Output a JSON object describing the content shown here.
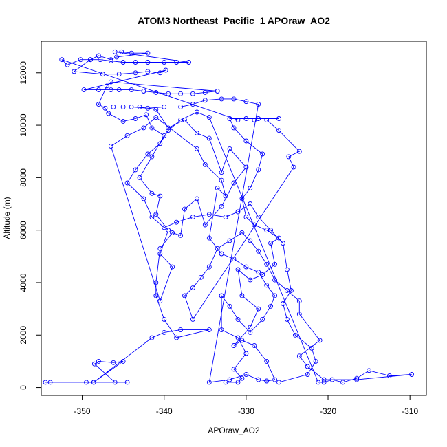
{
  "chart_data": {
    "type": "scatter",
    "title": "ATOM3 Northeast_Pacific_1 APOraw_AO2",
    "xlabel": "APOraw_AO2",
    "ylabel": "Altitude (m)",
    "xlim": [
      -355,
      -308
    ],
    "ylim": [
      -300,
      13200
    ],
    "x_ticks": [
      -350,
      -340,
      -330,
      -320,
      -310
    ],
    "y_ticks": [
      0,
      2000,
      4000,
      6000,
      8000,
      10000,
      12000
    ],
    "x_tick_labels": [
      "-350",
      "-340",
      "-330",
      "-320",
      "-310"
    ],
    "y_tick_labels": [
      "0",
      "2000",
      "4000",
      "6000",
      "8000",
      "10000",
      "12000"
    ],
    "grid": false,
    "legend": "none",
    "series": [
      {
        "color": "#0000ff",
        "style": "points-and-lines",
        "marker": "open-circle",
        "points": [
          [
            -354.5,
            200
          ],
          [
            -353.9,
            200
          ],
          [
            -349.5,
            200
          ],
          [
            -348.6,
            200
          ],
          [
            -344.5,
            200
          ],
          [
            -346.0,
            200
          ],
          [
            -348.5,
            900
          ],
          [
            -348.0,
            1000
          ],
          [
            -346.2,
            950
          ],
          [
            -345.0,
            1000
          ],
          [
            -348.6,
            200
          ],
          [
            -341.5,
            1900
          ],
          [
            -340.0,
            2100
          ],
          [
            -338.0,
            2200
          ],
          [
            -334.5,
            2200
          ],
          [
            -338.5,
            1900
          ],
          [
            -340.0,
            2600
          ],
          [
            -341.0,
            3500
          ],
          [
            -341.0,
            4000
          ],
          [
            -340.5,
            5300
          ],
          [
            -339.0,
            5900
          ],
          [
            -338.0,
            5800
          ],
          [
            -337.5,
            6800
          ],
          [
            -336.0,
            7200
          ],
          [
            -335.0,
            6200
          ],
          [
            -333.0,
            6900
          ],
          [
            -331.5,
            7800
          ],
          [
            -330.0,
            8400
          ],
          [
            -332.0,
            9100
          ],
          [
            -333.0,
            8200
          ],
          [
            -334.5,
            9500
          ],
          [
            -336.0,
            9700
          ],
          [
            -337.5,
            10200
          ],
          [
            -339.5,
            9900
          ],
          [
            -341.0,
            10600
          ],
          [
            -343.0,
            10700
          ],
          [
            -345.0,
            10700
          ],
          [
            -346.2,
            10700
          ],
          [
            -344.0,
            10700
          ],
          [
            -342.0,
            10650
          ],
          [
            -340.0,
            10700
          ],
          [
            -338.0,
            10700
          ],
          [
            -336.5,
            10800
          ],
          [
            -335.0,
            10950
          ],
          [
            -333.0,
            11000
          ],
          [
            -331.5,
            11000
          ],
          [
            -330.0,
            10900
          ],
          [
            -328.5,
            10800
          ],
          [
            -334.5,
            200
          ],
          [
            -332.0,
            300
          ],
          [
            -330.0,
            500
          ],
          [
            -328.5,
            300
          ],
          [
            -327.5,
            250
          ],
          [
            -326.5,
            300
          ],
          [
            -327.5,
            1000
          ],
          [
            -329.0,
            1600
          ],
          [
            -330.5,
            1800
          ],
          [
            -331.5,
            1600
          ],
          [
            -329.5,
            2300
          ],
          [
            -328.5,
            3000
          ],
          [
            -330.5,
            3500
          ],
          [
            -331.0,
            4500
          ],
          [
            -329.5,
            4100
          ],
          [
            -328.0,
            4300
          ],
          [
            -326.5,
            4700
          ],
          [
            -327.0,
            5500
          ],
          [
            -326.0,
            5700
          ],
          [
            -327.5,
            6000
          ],
          [
            -329.0,
            6200
          ],
          [
            -330.0,
            6500
          ],
          [
            -330.5,
            7200
          ],
          [
            -329.5,
            7600
          ],
          [
            -328.5,
            8300
          ],
          [
            -328.0,
            8900
          ],
          [
            -330.0,
            9400
          ],
          [
            -331.5,
            9900
          ],
          [
            -332.0,
            10250
          ],
          [
            -330.0,
            10250
          ],
          [
            -328.5,
            10250
          ],
          [
            -326.0,
            10250
          ],
          [
            -326.0,
            200
          ],
          [
            -322.5,
            500
          ],
          [
            -321.5,
            1000
          ],
          [
            -322.0,
            1500
          ],
          [
            -324.0,
            2000
          ],
          [
            -325.0,
            2600
          ],
          [
            -325.5,
            3200
          ],
          [
            -324.5,
            3700
          ],
          [
            -325.0,
            4500
          ],
          [
            -325.5,
            5500
          ],
          [
            -327.0,
            6000
          ],
          [
            -328.5,
            6500
          ],
          [
            -329.5,
            7000
          ],
          [
            -331.0,
            6700
          ],
          [
            -332.5,
            6500
          ],
          [
            -334.5,
            6600
          ],
          [
            -336.5,
            6500
          ],
          [
            -338.5,
            6300
          ],
          [
            -340.0,
            6100
          ],
          [
            -341.5,
            6500
          ],
          [
            -342.5,
            7200
          ],
          [
            -344.5,
            7800
          ],
          [
            -343.5,
            8300
          ],
          [
            -342.0,
            8900
          ],
          [
            -340.5,
            9300
          ],
          [
            -339.5,
            9800
          ],
          [
            -338.0,
            10200
          ],
          [
            -336.0,
            10500
          ],
          [
            -334.5,
            10300
          ],
          [
            -321.2,
            200
          ],
          [
            -320.5,
            200
          ],
          [
            -319.5,
            300
          ],
          [
            -318.2,
            200
          ],
          [
            -316.5,
            350
          ],
          [
            -315.0,
            650
          ],
          [
            -312.5,
            450
          ],
          [
            -309.8,
            500
          ],
          [
            -316.5,
            300
          ],
          [
            -320.5,
            300
          ],
          [
            -322.5,
            800
          ],
          [
            -323.5,
            1200
          ],
          [
            -321.0,
            1800
          ],
          [
            -323.5,
            2800
          ],
          [
            -323.5,
            3300
          ],
          [
            -325.0,
            3700
          ],
          [
            -326.5,
            4100
          ],
          [
            -327.5,
            4700
          ],
          [
            -328.5,
            5200
          ],
          [
            -329.5,
            5600
          ],
          [
            -330.5,
            5900
          ],
          [
            -332.0,
            5600
          ],
          [
            -333.5,
            5300
          ],
          [
            -334.5,
            4600
          ],
          [
            -335.5,
            4200
          ],
          [
            -336.5,
            3800
          ],
          [
            -337.5,
            3500
          ],
          [
            -336.5,
            2600
          ],
          [
            -324.2,
            8400
          ],
          [
            -324.8,
            8800
          ],
          [
            -323.5,
            9000
          ],
          [
            -326.0,
            9800
          ],
          [
            -327.5,
            10200
          ],
          [
            -329.0,
            10200
          ],
          [
            -331.0,
            10200
          ],
          [
            -352.5,
            12500
          ],
          [
            -351.8,
            12300
          ],
          [
            -350.2,
            12500
          ],
          [
            -349.0,
            12500
          ],
          [
            -347.8,
            12500
          ],
          [
            -346.5,
            12450
          ],
          [
            -345.0,
            12400
          ],
          [
            -343.5,
            12400
          ],
          [
            -342.0,
            12400
          ],
          [
            -340.0,
            12400
          ],
          [
            -338.5,
            12400
          ],
          [
            -337.0,
            12400
          ],
          [
            -346.0,
            12800
          ],
          [
            -345.2,
            12800
          ],
          [
            -344.0,
            12750
          ],
          [
            -342.0,
            12750
          ],
          [
            -345.8,
            12600
          ],
          [
            -346.5,
            12500
          ],
          [
            -348.0,
            12650
          ],
          [
            -349.0,
            12500
          ],
          [
            -351.0,
            12050
          ],
          [
            -347.5,
            11950
          ],
          [
            -345.5,
            11950
          ],
          [
            -343.5,
            12000
          ],
          [
            -342.0,
            12050
          ],
          [
            -340.5,
            12000
          ],
          [
            -339.8,
            12100
          ],
          [
            -349.8,
            11350
          ],
          [
            -348.0,
            11350
          ],
          [
            -346.5,
            11350
          ],
          [
            -345.5,
            11350
          ],
          [
            -344.0,
            11350
          ],
          [
            -342.5,
            11300
          ],
          [
            -341.0,
            11250
          ],
          [
            -339.5,
            11200
          ],
          [
            -338.0,
            11200
          ],
          [
            -336.5,
            11200
          ],
          [
            -335.0,
            11250
          ],
          [
            -333.5,
            11300
          ],
          [
            -346.5,
            11650
          ],
          [
            -347.0,
            11500
          ],
          [
            -348.0,
            10800
          ],
          [
            -347.2,
            10650
          ],
          [
            -346.8,
            10450
          ],
          [
            -345.0,
            10150
          ],
          [
            -343.5,
            10250
          ],
          [
            -342.2,
            10400
          ],
          [
            -341.5,
            9900
          ],
          [
            -340.0,
            9600
          ],
          [
            -341.5,
            8800
          ],
          [
            -343.0,
            8000
          ],
          [
            -341.5,
            7400
          ],
          [
            -340.5,
            7300
          ],
          [
            -341.0,
            6600
          ],
          [
            -339.5,
            6000
          ],
          [
            -340.5,
            5100
          ],
          [
            -339.0,
            4600
          ],
          [
            -340.5,
            3300
          ],
          [
            -346.5,
            9200
          ],
          [
            -344.5,
            9600
          ],
          [
            -342.5,
            9900
          ],
          [
            -341.0,
            10300
          ],
          [
            -336.0,
            9100
          ],
          [
            -335.0,
            8500
          ],
          [
            -333.0,
            7900
          ],
          [
            -332.5,
            7300
          ],
          [
            -333.5,
            7600
          ],
          [
            -334.5,
            5700
          ],
          [
            -333.0,
            5100
          ],
          [
            -331.5,
            4900
          ],
          [
            -330.0,
            4600
          ],
          [
            -328.5,
            4400
          ],
          [
            -327.5,
            3900
          ],
          [
            -326.5,
            3500
          ],
          [
            -327.0,
            3100
          ],
          [
            -328.0,
            2600
          ],
          [
            -329.5,
            2100
          ],
          [
            -331.0,
            2600
          ],
          [
            -332.0,
            3100
          ],
          [
            -333.0,
            3500
          ],
          [
            -333.0,
            2200
          ],
          [
            -331.0,
            1900
          ],
          [
            -330.0,
            1300
          ],
          [
            -331.5,
            700
          ],
          [
            -330.5,
            350
          ],
          [
            -331.0,
            200
          ],
          [
            -332.5,
            200
          ]
        ]
      }
    ]
  }
}
